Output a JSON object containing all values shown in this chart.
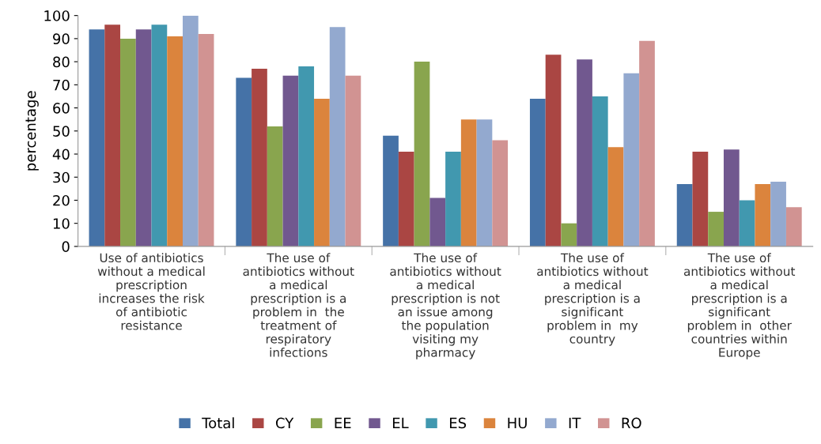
{
  "chart_data": {
    "type": "bar",
    "ylabel": "percentage",
    "ylim": [
      0,
      100
    ],
    "yticks": [
      0,
      10,
      20,
      30,
      40,
      50,
      60,
      70,
      80,
      90,
      100
    ],
    "grid": false,
    "legend": "bottom",
    "categories": [
      "Use of antibiotics\nwithout a medical\nprescription\nincreases the risk\nof antibiotic\nresistance",
      "The use of\nantibiotics without\na medical\nprescription is a\nproblem in  the\ntreatment of\nrespiratory\ninfections",
      "The use of\nantibiotics without\na medical\nprescription is not\nan issue among\nthe population\nvisiting my\npharmacy",
      "The use of\nantibiotics without\na medical\nprescription is a\nsignificant\nproblem in  my\ncountry",
      "The use of\nantibiotics without\na medical\nprescription is a\nsignificant\nproblem in  other\ncountries within\nEurope"
    ],
    "series": [
      {
        "name": "Total",
        "color": "#4572a7",
        "values": [
          94,
          73,
          48,
          64,
          27
        ]
      },
      {
        "name": "CY",
        "color": "#aa4643",
        "values": [
          96,
          77,
          41,
          83,
          41
        ]
      },
      {
        "name": "EE",
        "color": "#89a54e",
        "values": [
          90,
          52,
          80,
          10,
          15
        ]
      },
      {
        "name": "EL",
        "color": "#71588f",
        "values": [
          94,
          74,
          21,
          81,
          42
        ]
      },
      {
        "name": "ES",
        "color": "#4198af",
        "values": [
          96,
          78,
          41,
          65,
          20
        ]
      },
      {
        "name": "HU",
        "color": "#db843d",
        "values": [
          91,
          64,
          55,
          43,
          27
        ]
      },
      {
        "name": "IT",
        "color": "#93a9cf",
        "values": [
          100,
          95,
          55,
          75,
          28
        ]
      },
      {
        "name": "RO",
        "color": "#d19392",
        "values": [
          92,
          74,
          46,
          89,
          17
        ]
      }
    ]
  }
}
